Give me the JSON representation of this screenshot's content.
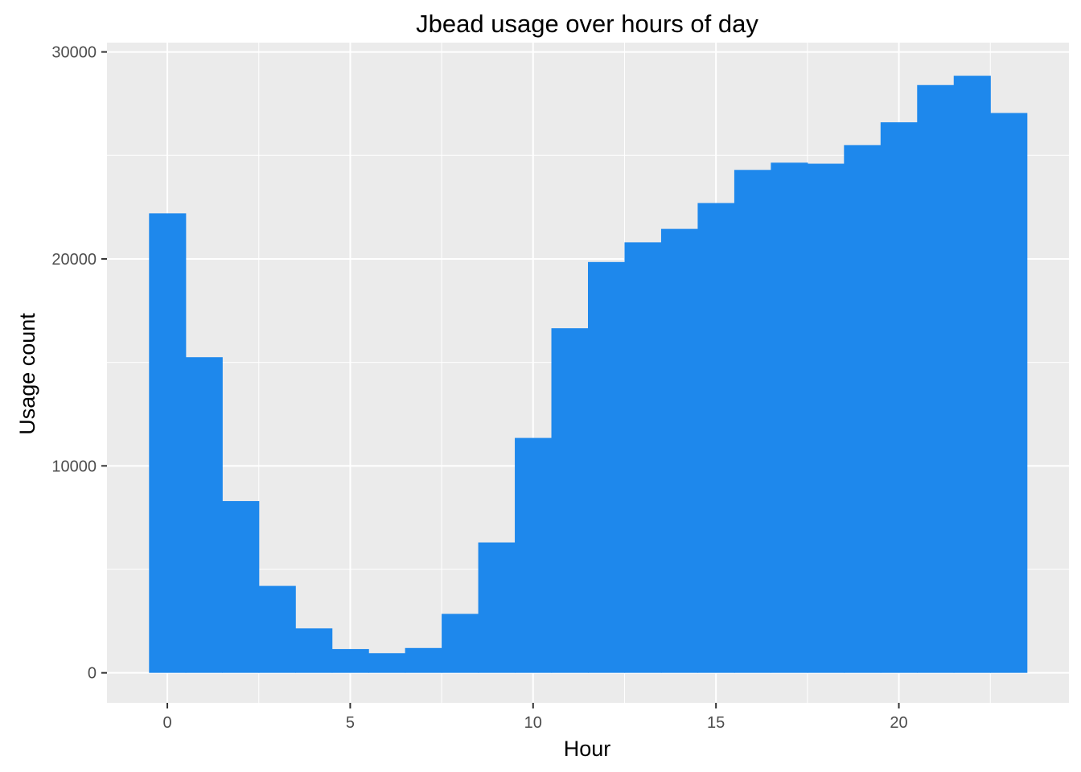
{
  "chart_data": {
    "type": "bar",
    "title": "Jbead usage over hours of day",
    "xlabel": "Hour",
    "ylabel": "Usage count",
    "x": [
      0,
      1,
      2,
      3,
      4,
      5,
      6,
      7,
      8,
      9,
      10,
      11,
      12,
      13,
      14,
      15,
      16,
      17,
      18,
      19,
      20,
      21,
      22,
      23
    ],
    "values": [
      22200,
      15250,
      8300,
      4200,
      2150,
      1150,
      950,
      1200,
      2850,
      6300,
      11350,
      16650,
      19850,
      20800,
      21450,
      22700,
      24300,
      24650,
      24600,
      25500,
      26600,
      28400,
      28850,
      27050
    ],
    "xlim": [
      -1.65,
      24.65
    ],
    "ylim": [
      -1450,
      30450
    ],
    "xticks": [
      0,
      5,
      10,
      15,
      20
    ],
    "xtick_labels": [
      "0",
      "5",
      "10",
      "15",
      "20"
    ],
    "yticks": [
      0,
      10000,
      20000,
      30000
    ],
    "ytick_labels": [
      "0",
      "10000",
      "20000",
      "30000"
    ],
    "grid": true,
    "bar_color": "#1e88ec",
    "panel_background": "#ebebeb",
    "grid_color": "#ffffff"
  }
}
